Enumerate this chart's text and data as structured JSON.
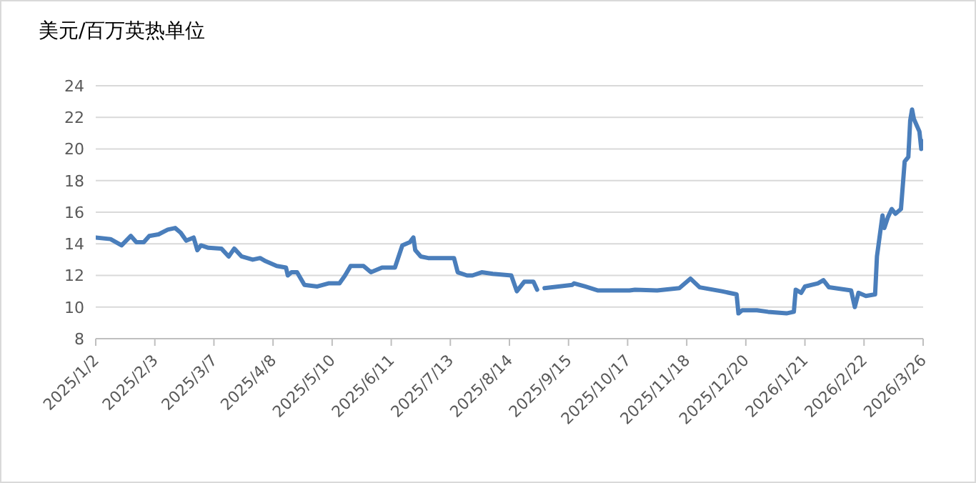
{
  "chart_data": {
    "type": "line",
    "ylabel": "美元/百万英热单位",
    "x": [
      "2025-01-02",
      "2025-01-10",
      "2025-01-16",
      "2025-01-21",
      "2025-01-24",
      "2025-01-28",
      "2025-01-31",
      "2025-02-05",
      "2025-02-10",
      "2025-02-14",
      "2025-02-17",
      "2025-02-20",
      "2025-02-24",
      "2025-02-26",
      "2025-02-28",
      "2025-03-04",
      "2025-03-11",
      "2025-03-15",
      "2025-03-18",
      "2025-03-22",
      "2025-03-28",
      "2025-04-01",
      "2025-04-04",
      "2025-04-10",
      "2025-04-15",
      "2025-04-16",
      "2025-04-18",
      "2025-04-21",
      "2025-04-25",
      "2025-05-02",
      "2025-05-08",
      "2025-05-14",
      "2025-05-17",
      "2025-05-20",
      "2025-05-27",
      "2025-05-31",
      "2025-06-06",
      "2025-06-13",
      "2025-06-17",
      "2025-06-21",
      "2025-06-23",
      "2025-06-24",
      "2025-06-27",
      "2025-07-01",
      "2025-07-15",
      "2025-07-17",
      "2025-07-22",
      "2025-07-25",
      "2025-07-30",
      "2025-08-05",
      "2025-08-15",
      "2025-08-18",
      "2025-08-22",
      "2025-08-27",
      "2025-08-29",
      "2025-09-01",
      "2025-09-02",
      "2025-09-17",
      "2025-09-18",
      "2025-09-24",
      "2025-10-01",
      "2025-10-18",
      "2025-10-21",
      "2025-11-02",
      "2025-11-14",
      "2025-11-20",
      "2025-11-25",
      "2025-12-07",
      "2025-12-15",
      "2025-12-16",
      "2025-12-18",
      "2025-12-26",
      "2026-01-01",
      "2026-01-11",
      "2026-01-15",
      "2026-01-16",
      "2026-01-19",
      "2026-01-21",
      "2026-01-28",
      "2026-01-31",
      "2026-02-03",
      "2026-02-15",
      "2026-02-17",
      "2026-02-19",
      "2026-02-23",
      "2026-02-28",
      "2026-03-01",
      "2026-03-04",
      "2026-03-05",
      "2026-03-07",
      "2026-03-09",
      "2026-03-11",
      "2026-03-14",
      "2026-03-16",
      "2026-03-18",
      "2026-03-19",
      "2026-03-20",
      "2026-03-21",
      "2026-03-24",
      "2026-03-25",
      "2026-03-26"
    ],
    "series": [
      {
        "color": "#4a7ebb",
        "values": [
          14.4,
          14.3,
          13.9,
          14.5,
          14.1,
          14.1,
          14.5,
          14.6,
          14.9,
          15.0,
          14.7,
          14.2,
          14.4,
          13.6,
          13.9,
          13.75,
          13.7,
          13.2,
          13.7,
          13.2,
          13.0,
          13.1,
          12.9,
          12.6,
          12.5,
          12.0,
          12.2,
          12.2,
          11.4,
          11.3,
          11.5,
          11.5,
          12.0,
          12.6,
          12.6,
          12.2,
          12.5,
          12.5,
          13.9,
          14.1,
          14.4,
          13.6,
          13.2,
          13.1,
          13.1,
          12.2,
          12.0,
          12.0,
          12.2,
          12.1,
          12.0,
          11.0,
          11.6,
          11.6,
          11.1,
          null,
          11.2,
          11.4,
          11.5,
          11.3,
          11.05,
          11.05,
          11.1,
          11.05,
          11.2,
          11.8,
          11.25,
          11.0,
          10.8,
          9.6,
          9.8,
          9.8,
          9.7,
          9.6,
          9.7,
          11.1,
          10.9,
          11.3,
          11.5,
          11.7,
          11.25,
          11.05,
          10.0,
          10.9,
          10.7,
          10.8,
          13.2,
          15.8,
          15.0,
          15.7,
          16.2,
          15.9,
          16.2,
          19.2,
          19.5,
          21.8,
          22.5,
          21.9,
          21.1,
          20.0,
          20.5
        ]
      }
    ],
    "xlim": [
      "2025-01-02",
      "2026-03-26"
    ],
    "xticks": [
      {
        "value": "2025-01-02",
        "label": "2025/1/2"
      },
      {
        "value": "2025-02-03",
        "label": "2025/2/3"
      },
      {
        "value": "2025-03-07",
        "label": "2025/3/7"
      },
      {
        "value": "2025-04-08",
        "label": "2025/4/8"
      },
      {
        "value": "2025-05-10",
        "label": "2025/5/10"
      },
      {
        "value": "2025-06-11",
        "label": "2025/6/11"
      },
      {
        "value": "2025-07-13",
        "label": "2025/7/13"
      },
      {
        "value": "2025-08-14",
        "label": "2025/8/14"
      },
      {
        "value": "2025-09-15",
        "label": "2025/9/15"
      },
      {
        "value": "2025-10-17",
        "label": "2025/10/17"
      },
      {
        "value": "2025-11-18",
        "label": "2025/11/18"
      },
      {
        "value": "2025-12-20",
        "label": "2025/12/20"
      },
      {
        "value": "2026-01-21",
        "label": "2026/1/21"
      },
      {
        "value": "2026-02-22",
        "label": "2026/2/22"
      },
      {
        "value": "2026-03-26",
        "label": "2026/3/26"
      }
    ],
    "ylim": [
      8,
      24
    ],
    "yticks": [
      8,
      10,
      12,
      14,
      16,
      18,
      20,
      22,
      24
    ],
    "grid": "y",
    "legend": false,
    "marker": "none",
    "line_style": "solid"
  }
}
